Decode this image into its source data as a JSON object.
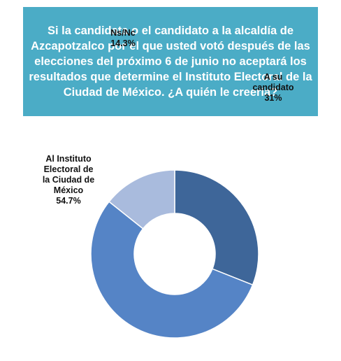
{
  "title": "Si la candidata o el candidato a la alcaldía de Azcapotzalco por el que usted votó después de las elecciones del próximo 6 de junio no aceptará los resultados que determine el Instituto Electoral de la Ciudad de México. ¿A quién le creería?",
  "chart_data": {
    "type": "pie",
    "variant": "donut",
    "title": "Si la candidata o el candidato a la alcaldía de Azcapotzalco por el que usted votó después de las elecciones del próximo 6 de junio no aceptará los resultados que determine el Instituto Electoral de la Ciudad de México. ¿A quién le creería?",
    "slices": [
      {
        "label": "A su candidato",
        "label_lines": [
          "A su",
          "candidato"
        ],
        "value": 31,
        "value_label": "31%",
        "color": "#3e6699"
      },
      {
        "label": "Al Instituto Electoral de la Ciudad de México",
        "label_lines": [
          "Al Instituto",
          "Electoral de",
          "la Ciudad de",
          "México"
        ],
        "value": 54.7,
        "value_label": "54.7%",
        "color": "#5584c6"
      },
      {
        "label": "Ns/Nc",
        "label_lines": [
          "Ns/Nc"
        ],
        "value": 14.3,
        "value_label": "14.3%",
        "color": "#a9bbdd"
      }
    ]
  }
}
